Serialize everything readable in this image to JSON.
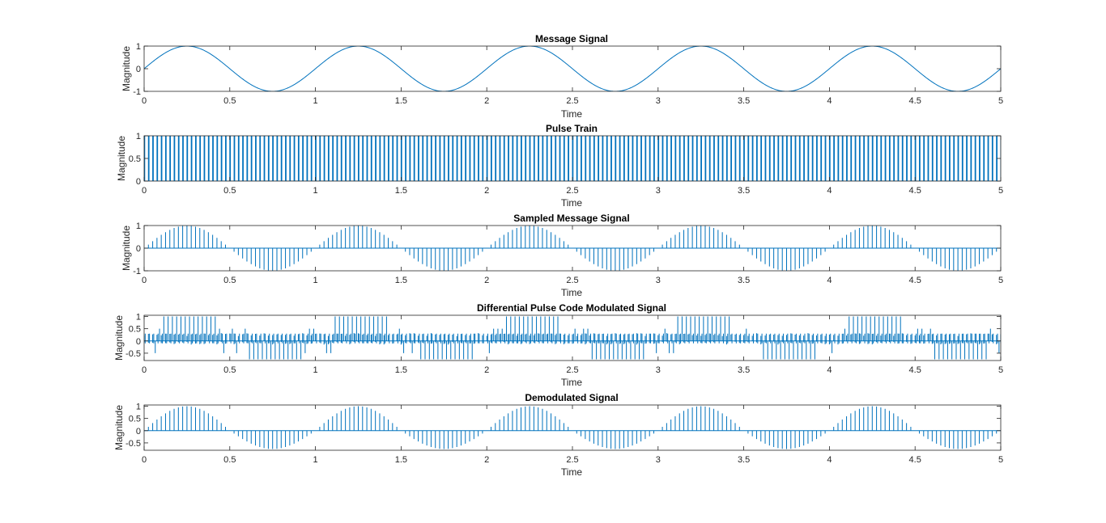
{
  "figure": {
    "line_color": "#0072BD",
    "axes_color": "#262626",
    "background": "#ffffff"
  },
  "chart_data": [
    {
      "type": "line",
      "title": "Message Signal",
      "xlabel": "Time",
      "ylabel": "Magnitude",
      "xlim": [
        0,
        5
      ],
      "ylim": [
        -1,
        1
      ],
      "xticks": [
        "0",
        "0.5",
        "1",
        "1.5",
        "2",
        "2.5",
        "3",
        "3.5",
        "4",
        "4.5",
        "5"
      ],
      "yticks": [
        "-1",
        "0",
        "1"
      ],
      "signal": "sine",
      "frequency": 1,
      "amplitude": 1,
      "grid": false,
      "box": true
    },
    {
      "type": "line",
      "title": "Pulse Train",
      "xlabel": "Time",
      "ylabel": "Magnitude",
      "xlim": [
        0,
        5
      ],
      "ylim": [
        0,
        1
      ],
      "xticks": [
        "0",
        "0.5",
        "1",
        "1.5",
        "2",
        "2.5",
        "3",
        "3.5",
        "4",
        "4.5",
        "5"
      ],
      "yticks": [
        "0",
        "0.5",
        "1"
      ],
      "signal": "pulse-train",
      "pulse_period": 0.025,
      "pulse_height": 1,
      "grid": false,
      "box": true
    },
    {
      "type": "line",
      "title": "Sampled Message Signal",
      "xlabel": "Time",
      "ylabel": "Magnitude",
      "xlim": [
        0,
        5
      ],
      "ylim": [
        -1,
        1
      ],
      "xticks": [
        "0",
        "0.5",
        "1",
        "1.5",
        "2",
        "2.5",
        "3",
        "3.5",
        "4",
        "4.5",
        "5"
      ],
      "yticks": [
        "-1",
        "0",
        "1"
      ],
      "signal": "sampled-sine",
      "pulse_period": 0.025,
      "frequency": 1,
      "grid": false,
      "box": true
    },
    {
      "type": "line",
      "title": "Differential Pulse Code Modulated Signal",
      "xlabel": "Time",
      "ylabel": "Magnitude",
      "xlim": [
        0,
        5
      ],
      "ylim": [
        -0.8,
        1.05
      ],
      "xticks": [
        "0",
        "0.5",
        "1",
        "1.5",
        "2",
        "2.5",
        "3",
        "3.5",
        "4",
        "4.5",
        "5"
      ],
      "yticks": [
        "-0.5",
        "0",
        "0.5",
        "1"
      ],
      "signal": "dpcm",
      "pulse_period": 0.025,
      "frequency": 1,
      "grid": false,
      "box": true
    },
    {
      "type": "line",
      "title": "Demodulated Signal",
      "xlabel": "Time",
      "ylabel": "Magnitude",
      "xlim": [
        0,
        5
      ],
      "ylim": [
        -0.8,
        1.05
      ],
      "xticks": [
        "0",
        "0.5",
        "1",
        "1.5",
        "2",
        "2.5",
        "3",
        "3.5",
        "4",
        "4.5",
        "5"
      ],
      "yticks": [
        "-0.5",
        "0",
        "0.5",
        "1"
      ],
      "signal": "demodulated",
      "pulse_period": 0.025,
      "frequency": 1,
      "grid": false,
      "box": true
    }
  ]
}
